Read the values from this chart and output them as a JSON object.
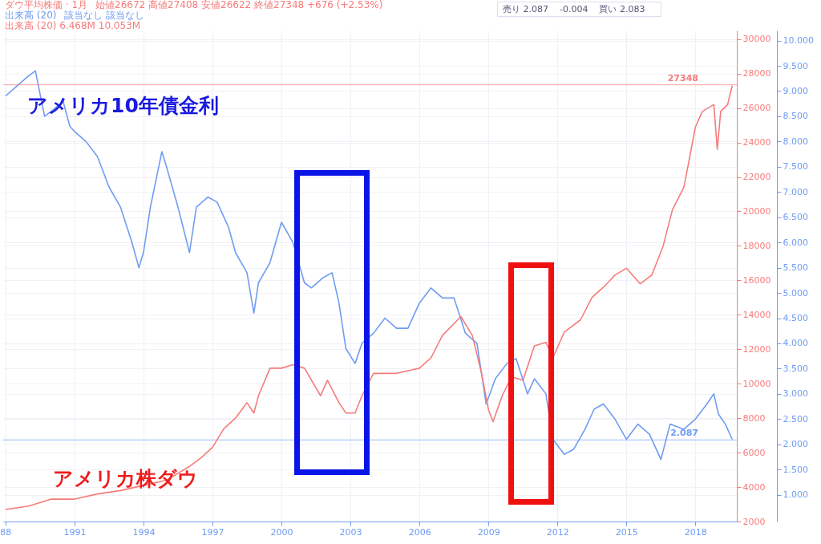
{
  "chart_data": {
    "type": "line",
    "annotations": [
      "ダウ平均株価 · 1月",
      "始値26672 高値27408 安値26622 終値27348 +676 (+2.53%)",
      "出来高 (20)",
      "該当なし 該当なし",
      "出来高 (20) 6.468M 10.053M",
      "売り 2.087",
      "-0.004",
      "買い 2.083"
    ],
    "series": [
      {
        "name": "アメリカ10年債金利",
        "color": "#6f9cf2",
        "x": [
          1988.0,
          1988.5,
          1989.0,
          1989.3,
          1989.7,
          1990.0,
          1990.5,
          1990.8,
          1991.0,
          1991.5,
          1992.0,
          1992.5,
          1993.0,
          1993.5,
          1993.8,
          1994.0,
          1994.3,
          1994.8,
          1995.0,
          1995.5,
          1996.0,
          1996.3,
          1996.8,
          1997.2,
          1997.7,
          1998.0,
          1998.5,
          1998.8,
          1999.0,
          1999.5,
          2000.0,
          2000.5,
          2001.0,
          2001.3,
          2001.8,
          2002.2,
          2002.5,
          2002.8,
          2003.2,
          2003.5,
          2004.0,
          2004.5,
          2005.0,
          2005.5,
          2006.0,
          2006.5,
          2007.0,
          2007.5,
          2008.0,
          2008.5,
          2008.9,
          2009.3,
          2009.8,
          2010.2,
          2010.7,
          2011.0,
          2011.5,
          2011.8,
          2012.3,
          2012.7,
          2013.2,
          2013.6,
          2014.0,
          2014.5,
          2015.0,
          2015.5,
          2016.0,
          2016.5,
          2016.9,
          2017.5,
          2018.0,
          2018.5,
          2018.8,
          2019.0,
          2019.3,
          2019.6
        ],
        "values": [
          8.9,
          9.1,
          9.3,
          9.4,
          8.5,
          8.6,
          8.8,
          8.3,
          8.2,
          8.0,
          7.7,
          7.1,
          6.7,
          6.0,
          5.5,
          5.8,
          6.7,
          7.8,
          7.5,
          6.7,
          5.8,
          6.7,
          6.9,
          6.8,
          6.3,
          5.8,
          5.4,
          4.6,
          5.2,
          5.6,
          6.4,
          6.0,
          5.2,
          5.1,
          5.3,
          5.4,
          4.8,
          3.9,
          3.6,
          4.0,
          4.2,
          4.5,
          4.3,
          4.3,
          4.8,
          5.1,
          4.9,
          4.9,
          4.2,
          4.0,
          2.8,
          3.3,
          3.6,
          3.7,
          3.0,
          3.3,
          3.0,
          2.1,
          1.8,
          1.9,
          2.3,
          2.7,
          2.8,
          2.5,
          2.1,
          2.4,
          2.2,
          1.7,
          2.4,
          2.3,
          2.5,
          2.8,
          3.0,
          2.6,
          2.4,
          2.1
        ]
      },
      {
        "name": "アメリカ株ダウ",
        "color": "#f77b7b",
        "axis": "y2",
        "x": [
          1988.0,
          1989.0,
          1990.0,
          1991.0,
          1992.0,
          1993.0,
          1994.0,
          1995.0,
          1995.5,
          1996.0,
          1996.5,
          1997.0,
          1997.5,
          1998.0,
          1998.5,
          1998.8,
          1999.0,
          1999.5,
          2000.0,
          2000.5,
          2001.0,
          2001.7,
          2002.0,
          2002.5,
          2002.8,
          2003.2,
          2003.5,
          2004.0,
          2005.0,
          2006.0,
          2006.5,
          2007.0,
          2007.8,
          2008.3,
          2008.7,
          2009.0,
          2009.2,
          2009.6,
          2010.0,
          2010.5,
          2011.0,
          2011.5,
          2011.8,
          2012.3,
          2013.0,
          2013.5,
          2014.0,
          2014.5,
          2015.0,
          2015.6,
          2016.1,
          2016.6,
          2017.0,
          2017.5,
          2018.0,
          2018.3,
          2018.8,
          2018.95,
          2019.1,
          2019.4,
          2019.6
        ],
        "values": [
          2700,
          2900,
          3300,
          3300,
          3600,
          3800,
          4100,
          4400,
          4800,
          5200,
          5700,
          6300,
          7400,
          8000,
          8900,
          8300,
          9300,
          10900,
          10900,
          11100,
          10900,
          9300,
          10200,
          8900,
          8300,
          8300,
          9300,
          10600,
          10600,
          10900,
          11500,
          12800,
          13900,
          12800,
          10600,
          8500,
          7800,
          9300,
          10400,
          10200,
          12200,
          12400,
          11500,
          13000,
          13700,
          15000,
          15600,
          16300,
          16700,
          15800,
          16300,
          18000,
          20100,
          21400,
          24900,
          25800,
          26200,
          23600,
          25800,
          26200,
          27300
        ]
      }
    ],
    "xlim": [
      1987.9,
      2019.8
    ],
    "xticks": [
      {
        "value": 1988,
        "label": "88"
      },
      1991,
      1994,
      1997,
      2000,
      2003,
      2006,
      2009,
      2012,
      2015,
      2018
    ],
    "ylim": [
      0.47,
      10.2
    ],
    "yticks": [
      {
        "value": 1,
        "label": "1.000"
      },
      {
        "value": 1.5,
        "label": "1.500"
      },
      {
        "value": 2,
        "label": "2.000"
      },
      {
        "value": 2.5,
        "label": "2.500"
      },
      {
        "value": 3,
        "label": "3.000"
      },
      {
        "value": 3.5,
        "label": "3.500"
      },
      {
        "value": 4,
        "label": "4.000"
      },
      {
        "value": 4.5,
        "label": "4.500"
      },
      {
        "value": 5,
        "label": "5.000"
      },
      {
        "value": 5.5,
        "label": "5.500"
      },
      {
        "value": 6,
        "label": "6.000"
      },
      {
        "value": 6.5,
        "label": "6.500"
      },
      {
        "value": 7,
        "label": "7.000"
      },
      {
        "value": 7.5,
        "label": "7.500"
      },
      {
        "value": 8,
        "label": "8.000"
      },
      {
        "value": 8.5,
        "label": "8.500"
      },
      {
        "value": 9,
        "label": "9.000"
      },
      {
        "value": 9.5,
        "label": "9.500"
      },
      {
        "value": 10,
        "label": "10.000"
      }
    ],
    "y2lim": [
      2000,
      30500
    ],
    "y2ticks": [
      2000,
      4000,
      6000,
      8000,
      10000,
      12000,
      14000,
      16000,
      18000,
      20000,
      22000,
      24000,
      26000,
      28000,
      30000
    ],
    "ref_lines": [
      {
        "axis": "y",
        "value": 2.087,
        "label": "2.087",
        "color": "#6f9cf2"
      },
      {
        "axis": "y2",
        "value": 27348,
        "label": "27348",
        "color": "#f77b7b"
      }
    ],
    "grid": true
  }
}
